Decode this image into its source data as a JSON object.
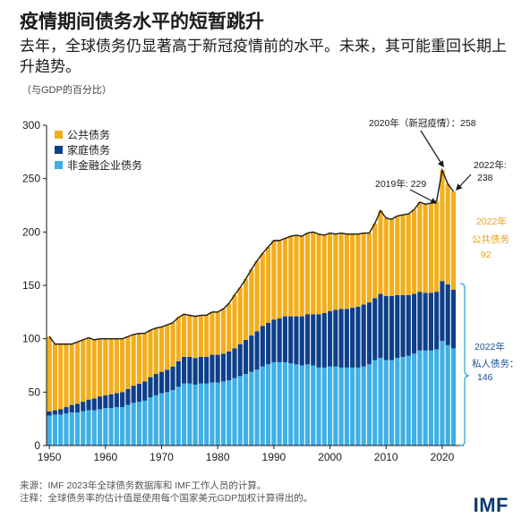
{
  "title": "疫情期间债务水平的短暂跳升",
  "subtitle": "去年，全球债务仍显著高于新冠疫情前的水平。未来，其可能重回长期上升趋势。",
  "unit_label": "（与GDP的百分比）",
  "source": "来源：IMF 2023年全球债务数据库和 IMF工作人员的计算。",
  "note": "注释：全球债务率的估计值是使用每个国家美元GDP加权计算得出的。",
  "logo": "IMF",
  "colors": {
    "public": "#f2ae1c",
    "household": "#0e3f8a",
    "nonfinancial": "#3eb0e6",
    "text_blue": "#1b4f8f",
    "text_orange": "#e6a11d"
  },
  "annotations": {
    "covid": "2020年（新冠疫情）：258",
    "y2019": "2019年: 229",
    "y2022_line1": "2022年:",
    "y2022_line2": "238",
    "public_line1": "2022年",
    "public_line2": "公共债务",
    "public_line3": "92",
    "private_line1": "2022年",
    "private_line2": "私人债务：",
    "private_line3": "146"
  },
  "chart_data": {
    "type": "bar",
    "stacked": true,
    "title": "",
    "xlabel": "",
    "ylabel": "",
    "ylim": [
      0,
      300
    ],
    "yticks": [
      0,
      50,
      100,
      150,
      200,
      250,
      300
    ],
    "xticks": [
      1950,
      1960,
      1970,
      1980,
      1990,
      2000,
      2010,
      2020
    ],
    "grid": false,
    "legend_position": "top-left",
    "years": [
      1950,
      1951,
      1952,
      1953,
      1954,
      1955,
      1956,
      1957,
      1958,
      1959,
      1960,
      1961,
      1962,
      1963,
      1964,
      1965,
      1966,
      1967,
      1968,
      1969,
      1970,
      1971,
      1972,
      1973,
      1974,
      1975,
      1976,
      1977,
      1978,
      1979,
      1980,
      1981,
      1982,
      1983,
      1984,
      1985,
      1986,
      1987,
      1988,
      1989,
      1990,
      1991,
      1992,
      1993,
      1994,
      1995,
      1996,
      1997,
      1998,
      1999,
      2000,
      2001,
      2002,
      2003,
      2004,
      2005,
      2006,
      2007,
      2008,
      2009,
      2010,
      2011,
      2012,
      2013,
      2014,
      2015,
      2016,
      2017,
      2018,
      2019,
      2020,
      2021,
      2022
    ],
    "series": [
      {
        "name": "非金融企业债务",
        "values": [
          28,
          29,
          29,
          30,
          31,
          31,
          32,
          33,
          33,
          34,
          35,
          35,
          36,
          36,
          38,
          40,
          41,
          42,
          45,
          47,
          49,
          50,
          52,
          55,
          58,
          58,
          57,
          58,
          58,
          59,
          59,
          60,
          61,
          63,
          65,
          67,
          69,
          71,
          74,
          76,
          78,
          78,
          78,
          77,
          76,
          75,
          76,
          75,
          73,
          73,
          74,
          74,
          73,
          73,
          73,
          73,
          74,
          76,
          80,
          82,
          80,
          80,
          82,
          83,
          84,
          86,
          89,
          89,
          89,
          90,
          98,
          94,
          91
        ]
      },
      {
        "name": "家庭债务",
        "values": [
          4,
          4,
          5,
          6,
          7,
          8,
          9,
          10,
          11,
          12,
          12,
          13,
          13,
          14,
          15,
          16,
          17,
          18,
          19,
          20,
          20,
          21,
          22,
          24,
          25,
          25,
          25,
          25,
          25,
          26,
          26,
          26,
          27,
          28,
          30,
          32,
          34,
          36,
          38,
          39,
          40,
          41,
          43,
          44,
          45,
          46,
          47,
          48,
          50,
          51,
          52,
          53,
          55,
          55,
          56,
          57,
          58,
          58,
          58,
          60,
          60,
          60,
          59,
          58,
          57,
          56,
          55,
          54,
          54,
          54,
          56,
          57,
          55
        ]
      },
      {
        "name": "公共债务",
        "values": [
          70,
          62,
          61,
          59,
          57,
          58,
          58,
          58,
          55,
          54,
          53,
          52,
          51,
          50,
          49,
          48,
          47,
          45,
          44,
          43,
          42,
          42,
          41,
          41,
          40,
          39,
          39,
          39,
          39,
          40,
          40,
          42,
          45,
          50,
          53,
          57,
          62,
          66,
          68,
          71,
          74,
          73,
          73,
          75,
          76,
          75,
          76,
          77,
          75,
          73,
          73,
          71,
          71,
          70,
          69,
          68,
          67,
          65,
          70,
          78,
          73,
          72,
          74,
          75,
          76,
          79,
          84,
          83,
          84,
          85,
          104,
          94,
          92
        ]
      }
    ]
  }
}
